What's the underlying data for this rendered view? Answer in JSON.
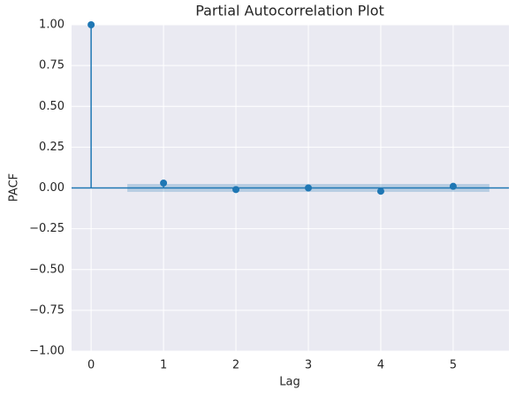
{
  "chart_data": {
    "type": "stem",
    "title": "Partial Autocorrelation Plot",
    "x_label": "Lag",
    "y_label": "PACF",
    "x": [
      0,
      1,
      2,
      3,
      4,
      5
    ],
    "values": [
      1.0,
      0.03,
      -0.01,
      0.0,
      -0.02,
      0.01
    ],
    "color": "#1f77b4",
    "baseline": 0,
    "confidence_x": [
      0.5,
      5.5
    ],
    "confidence_interval": [
      -0.024,
      0.024
    ],
    "band_color": "#1f77b4",
    "xlim": [
      -0.27,
      5.77
    ],
    "xticks": [
      0,
      1,
      2,
      3,
      4,
      5
    ],
    "ylim": [
      -1,
      1
    ],
    "yticks": [
      {
        "value": -1,
        "label": "−1.00"
      },
      {
        "value": -0.75,
        "label": "−0.75"
      },
      {
        "value": -0.5,
        "label": "−0.50"
      },
      {
        "value": -0.25,
        "label": "−0.25"
      },
      {
        "value": 0,
        "label": "0.00"
      },
      {
        "value": 0.25,
        "label": "0.25"
      },
      {
        "value": 0.5,
        "label": "0.50"
      },
      {
        "value": 0.75,
        "label": "0.75"
      },
      {
        "value": 1,
        "label": "1.00"
      }
    ],
    "grid": true
  }
}
